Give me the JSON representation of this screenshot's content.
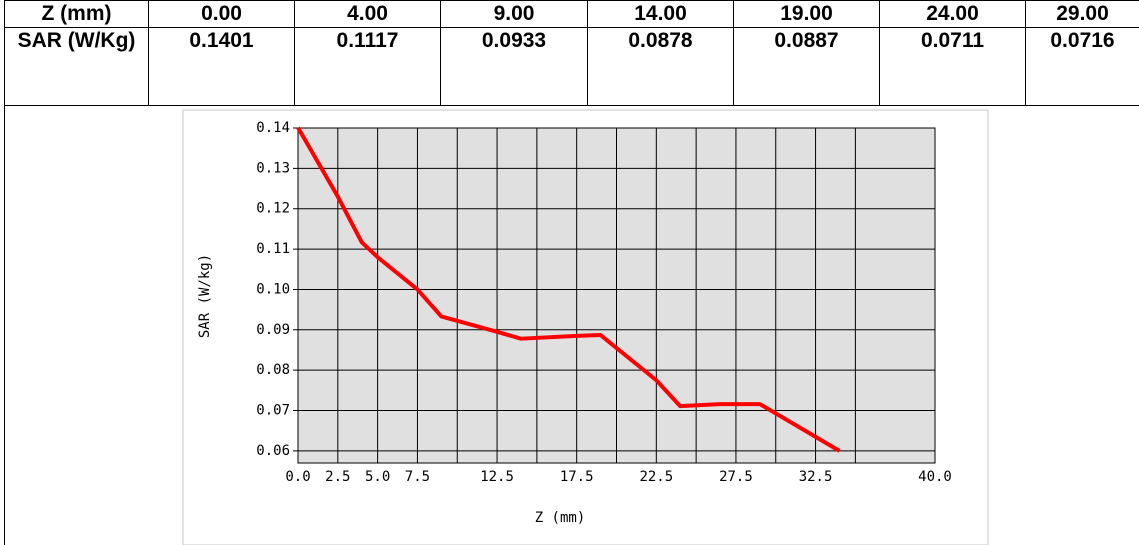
{
  "table": {
    "rows": [
      [
        "Z (mm)",
        "0.00",
        "4.00",
        "9.00",
        "14.00",
        "19.00",
        "24.00",
        "29.00"
      ],
      [
        "SAR (W/Kg)",
        "0.1401",
        "0.1117",
        "0.0933",
        "0.0878",
        "0.0887",
        "0.0711",
        "0.0716"
      ]
    ]
  },
  "chart_data": {
    "type": "line",
    "xlabel": "Z (mm)",
    "ylabel": "SAR (W/kg)",
    "x": [
      0,
      2.5,
      4,
      5,
      7.5,
      9,
      12.5,
      14,
      17.5,
      19,
      22.5,
      24,
      26.5,
      29,
      34
    ],
    "series": [
      {
        "name": "SAR",
        "color": "#ff0000",
        "values": [
          0.1401,
          0.123,
          0.1117,
          0.108,
          0.1,
          0.0933,
          0.0895,
          0.0878,
          0.0885,
          0.0887,
          0.0775,
          0.0711,
          0.0716,
          0.0716,
          0.06
        ]
      }
    ],
    "xlim": [
      0,
      40
    ],
    "ylim": [
      0.057,
      0.14
    ],
    "xticks": [
      {
        "value": 0,
        "label": "0.0"
      },
      2.5,
      {
        "value": 5,
        "label": "5.0"
      },
      7.5,
      12.5,
      17.5,
      22.5,
      27.5,
      32.5,
      {
        "value": 40,
        "label": "40.0"
      }
    ],
    "xgrid": [
      10,
      15,
      20,
      25,
      30,
      35
    ],
    "yticks": [
      0.14,
      0.13,
      0.12,
      0.11,
      {
        "value": 0.1,
        "label": "0.10"
      },
      0.09,
      0.08,
      0.07,
      0.06
    ],
    "grid": true,
    "background": "#e0e0e0"
  }
}
